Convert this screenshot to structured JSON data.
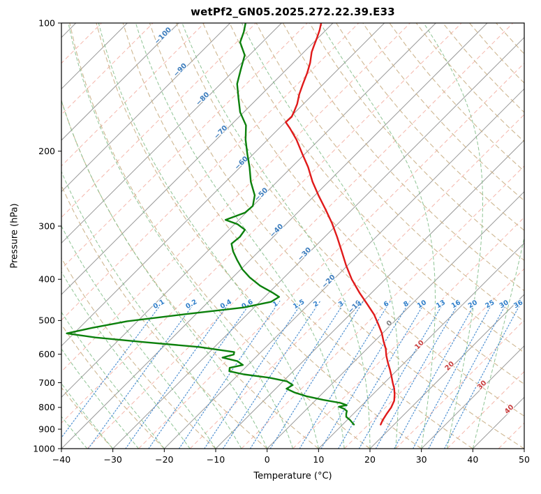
{
  "title": "wetPf2_GN05.2025.272.22.39.E33",
  "axes": {
    "x_label": "Temperature (°C)",
    "y_label": "Pressure (hPa)",
    "x_ticks": [
      -40,
      -30,
      -20,
      -10,
      0,
      10,
      20,
      30,
      40,
      50
    ],
    "y_ticks": [
      100,
      200,
      300,
      400,
      500,
      600,
      700,
      800,
      900,
      1000
    ]
  },
  "style": {
    "isotherm_major": "#999999",
    "isotherm_minor": "#f2a497",
    "dry_adiabat": "#ccb48c",
    "moist_adiabat": "#82bd88",
    "mixing_line": "#4d8fd1",
    "mixing_label": "#2f7ec9",
    "label_neg": "#3d7dbd",
    "label_zero": "#7f7f7f",
    "label_pos": "#c94040",
    "temperature_color": "#e01a1a",
    "dewpoint_color": "#0c800c",
    "frame": "#000000"
  },
  "chart_data": {
    "type": "line",
    "variant": "skew-t-log-p",
    "title": "wetPf2_GN05.2025.272.22.39.E33",
    "xlabel": "Temperature (°C)",
    "ylabel": "Pressure (hPa)",
    "x_range_c": [
      -40,
      50
    ],
    "pressure_range_hpa": [
      100,
      1000
    ],
    "skew_deg": 45,
    "grid": true,
    "series": [
      {
        "name": "dewpoint",
        "color": "#0c800c",
        "points_p_t": [
          [
            100,
            -87
          ],
          [
            105,
            -85.6
          ],
          [
            111,
            -84.3
          ],
          [
            119,
            -80.9
          ],
          [
            129,
            -78.8
          ],
          [
            139,
            -76.8
          ],
          [
            150,
            -73.8
          ],
          [
            162,
            -70.7
          ],
          [
            174,
            -67.0
          ],
          [
            188,
            -64.3
          ],
          [
            203,
            -61.2
          ],
          [
            218,
            -58.2
          ],
          [
            236,
            -55.1
          ],
          [
            254,
            -51.7
          ],
          [
            269,
            -50.0
          ],
          [
            279,
            -50.2
          ],
          [
            290,
            -52.6
          ],
          [
            297,
            -49.4
          ],
          [
            306,
            -46.9
          ],
          [
            318,
            -46.5
          ],
          [
            330,
            -46.8
          ],
          [
            344,
            -45.0
          ],
          [
            360,
            -42.6
          ],
          [
            379,
            -39.7
          ],
          [
            396,
            -36.7
          ],
          [
            414,
            -33.1
          ],
          [
            430,
            -29.3
          ],
          [
            440,
            -27.2
          ],
          [
            452,
            -27.8
          ],
          [
            466,
            -32.0
          ],
          [
            483,
            -42.0
          ],
          [
            502,
            -52.0
          ],
          [
            520,
            -57.5
          ],
          [
            536,
            -61.4
          ],
          [
            548,
            -55.0
          ],
          [
            561,
            -45.3
          ],
          [
            577,
            -33.0
          ],
          [
            593,
            -25.2
          ],
          [
            601,
            -24.8
          ],
          [
            611,
            -26.4
          ],
          [
            623,
            -22.8
          ],
          [
            636,
            -21.0
          ],
          [
            646,
            -23.0
          ],
          [
            658,
            -22.4
          ],
          [
            669,
            -19.0
          ],
          [
            681,
            -13.5
          ],
          [
            695,
            -9.2
          ],
          [
            709,
            -7.4
          ],
          [
            723,
            -7.9
          ],
          [
            738,
            -5.6
          ],
          [
            753,
            -2.6
          ],
          [
            768,
            1.4
          ],
          [
            781,
            5.4
          ],
          [
            790,
            7.0
          ],
          [
            797,
            5.8
          ],
          [
            806,
            7.2
          ],
          [
            816,
            8.2
          ],
          [
            828,
            8.6
          ],
          [
            842,
            9.2
          ],
          [
            857,
            10.6
          ],
          [
            870,
            11.6
          ],
          [
            878,
            12.2
          ]
        ]
      },
      {
        "name": "temperature",
        "color": "#e01a1a",
        "points_p_t": [
          [
            100,
            -72.3
          ],
          [
            104,
            -71.2
          ],
          [
            108,
            -70.3
          ],
          [
            113,
            -69.3
          ],
          [
            117,
            -68.5
          ],
          [
            124,
            -66.7
          ],
          [
            131,
            -65.3
          ],
          [
            139,
            -64.0
          ],
          [
            147,
            -62.7
          ],
          [
            155,
            -61.2
          ],
          [
            161,
            -60.4
          ],
          [
            166,
            -59.8
          ],
          [
            171,
            -59.9
          ],
          [
            177,
            -57.8
          ],
          [
            188,
            -54.4
          ],
          [
            203,
            -50.5
          ],
          [
            218,
            -46.8
          ],
          [
            236,
            -43.1
          ],
          [
            254,
            -39.3
          ],
          [
            274,
            -35.2
          ],
          [
            295,
            -31.3
          ],
          [
            318,
            -27.6
          ],
          [
            343,
            -24.0
          ],
          [
            371,
            -20.3
          ],
          [
            400,
            -16.5
          ],
          [
            430,
            -12.4
          ],
          [
            458,
            -8.6
          ],
          [
            484,
            -5.3
          ],
          [
            510,
            -2.6
          ],
          [
            535,
            -0.2
          ],
          [
            560,
            1.8
          ],
          [
            582,
            3.6
          ],
          [
            605,
            5.1
          ],
          [
            630,
            6.9
          ],
          [
            652,
            8.5
          ],
          [
            676,
            10.1
          ],
          [
            700,
            11.6
          ],
          [
            722,
            13.0
          ],
          [
            745,
            14.2
          ],
          [
            772,
            15.4
          ],
          [
            800,
            16.1
          ],
          [
            830,
            16.5
          ],
          [
            856,
            16.9
          ],
          [
            878,
            17.4
          ]
        ]
      }
    ],
    "isotherms": {
      "solid_step_c": 10,
      "dashed_offset_c": 5,
      "labels": [
        {
          "t": -100,
          "p": 108
        },
        {
          "t": -90,
          "p": 130
        },
        {
          "t": -80,
          "p": 152
        },
        {
          "t": -70,
          "p": 182
        },
        {
          "t": -60,
          "p": 215
        },
        {
          "t": -50,
          "p": 255
        },
        {
          "t": -40,
          "p": 310
        },
        {
          "t": -30,
          "p": 352
        },
        {
          "t": -20,
          "p": 408
        },
        {
          "t": -10,
          "p": 468
        },
        {
          "t": 0,
          "p": 512
        },
        {
          "t": 10,
          "p": 575
        },
        {
          "t": 20,
          "p": 645
        },
        {
          "t": 30,
          "p": 715
        },
        {
          "t": 40,
          "p": 815
        }
      ]
    },
    "dry_adiabats_theta_c": {
      "min": -40,
      "max": 190,
      "step": 10
    },
    "moist_adiabats_thetaw_c": {
      "min": -40,
      "max": 40,
      "step": 5
    },
    "mixing_ratio_g_kg": [
      0.1,
      0.2,
      0.4,
      0.6,
      1,
      1.5,
      2,
      3,
      4,
      6,
      8,
      10,
      13,
      16,
      20,
      25,
      30,
      36
    ],
    "mixing_label_pressure_hpa": 462,
    "mixing_lines_top_hpa": 450
  }
}
